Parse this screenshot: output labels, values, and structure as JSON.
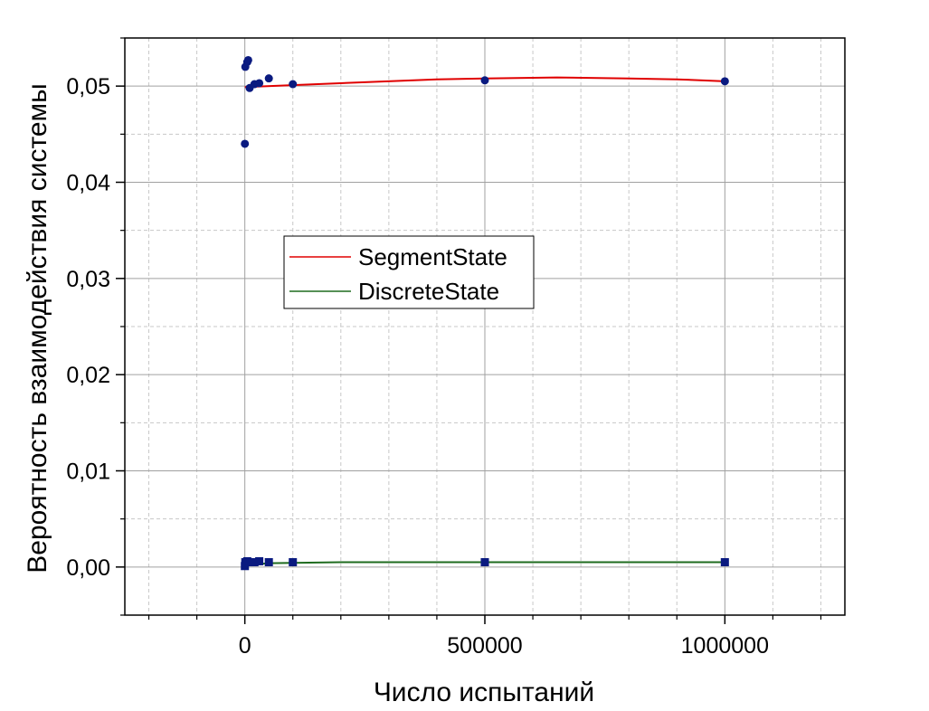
{
  "chart_data": {
    "type": "scatter",
    "xlabel": "Число испытаний",
    "ylabel": "Вероятность взаимодействия системы",
    "xlim": [
      -250000,
      1250000
    ],
    "ylim": [
      -0.005,
      0.055
    ],
    "grid": true,
    "legend_position": "center-left",
    "x_ticks": [
      0,
      500000,
      1000000
    ],
    "x_tick_labels": [
      "0",
      "500000",
      "1000000"
    ],
    "y_ticks": [
      0.0,
      0.01,
      0.02,
      0.03,
      0.04,
      0.05
    ],
    "y_tick_labels": [
      "0,00",
      "0,01",
      "0,02",
      "0,03",
      "0,04",
      "0,05"
    ],
    "colors": {
      "segment_line": "#e00000",
      "discrete_line": "#1e6b1e",
      "points": "#0a1a80",
      "grid_major": "#a0a0a0",
      "grid_minor": "#c8c8c8"
    },
    "series": [
      {
        "name": "SegmentState",
        "marker": "circle",
        "points": [
          [
            100,
            0.044
          ],
          [
            1000,
            0.052
          ],
          [
            5000,
            0.0525
          ],
          [
            7000,
            0.0527
          ],
          [
            10000,
            0.0498
          ],
          [
            20000,
            0.0502
          ],
          [
            30000,
            0.0503
          ],
          [
            50000,
            0.0508
          ],
          [
            100000,
            0.0502
          ],
          [
            500000,
            0.0506
          ],
          [
            1000000,
            0.0505
          ]
        ],
        "fit": [
          [
            0,
            0.0499
          ],
          [
            100000,
            0.0501
          ],
          [
            250000,
            0.0504
          ],
          [
            400000,
            0.0507
          ],
          [
            500000,
            0.0508
          ],
          [
            650000,
            0.0509
          ],
          [
            800000,
            0.0508
          ],
          [
            900000,
            0.0507
          ],
          [
            1000000,
            0.0505
          ]
        ]
      },
      {
        "name": "DiscreteState",
        "marker": "square",
        "points": [
          [
            100,
            0.0001
          ],
          [
            1000,
            0.0005
          ],
          [
            5000,
            0.0006
          ],
          [
            10000,
            0.0005
          ],
          [
            20000,
            0.0005
          ],
          [
            30000,
            0.0006
          ],
          [
            50000,
            0.0005
          ],
          [
            100000,
            0.0005
          ],
          [
            500000,
            0.0005
          ],
          [
            1000000,
            0.0005
          ]
        ],
        "fit": [
          [
            0,
            0.0002
          ],
          [
            50000,
            0.0004
          ],
          [
            200000,
            0.0005
          ],
          [
            1000000,
            0.0005
          ]
        ]
      }
    ]
  }
}
